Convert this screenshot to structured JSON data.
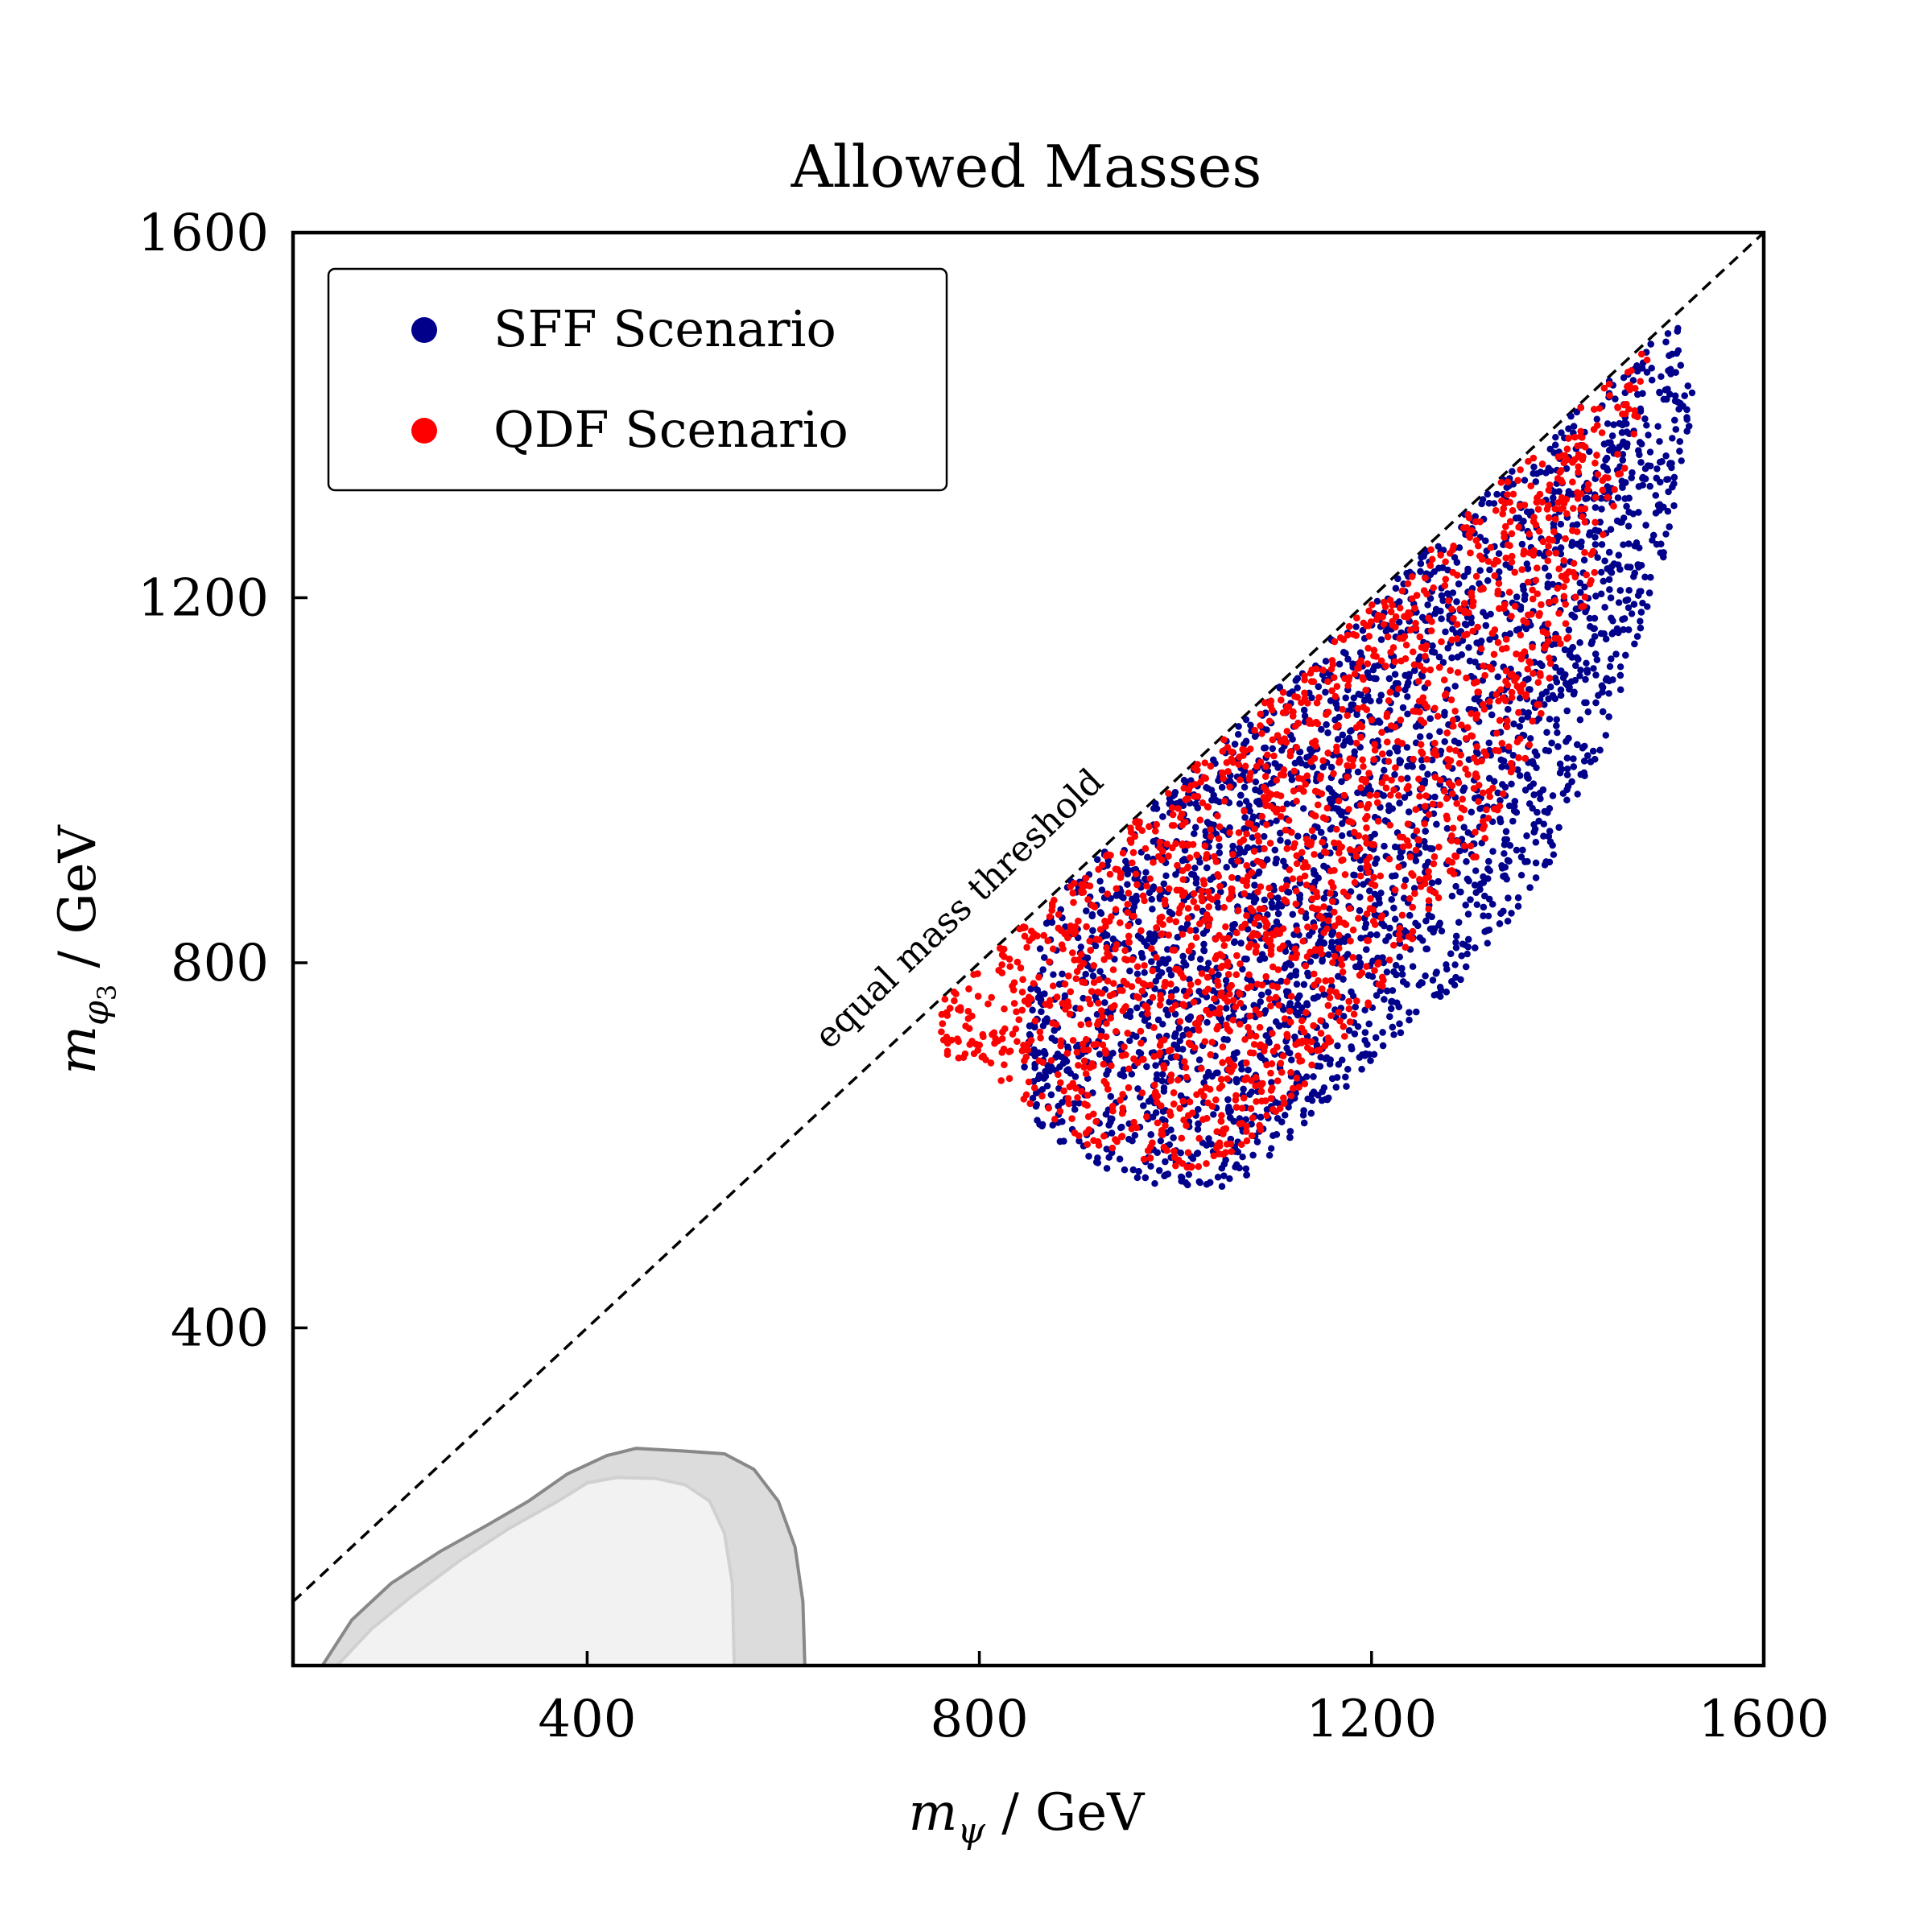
{
  "chart_data": {
    "type": "scatter",
    "title": "Allowed Masses",
    "xlabel": "m_ψ / GeV",
    "ylabel": "m_φ₃ / GeV",
    "xlabel_parts": {
      "symbol": "m",
      "subscript": "ψ",
      "unit": " / GeV"
    },
    "ylabel_parts": {
      "symbol": "m",
      "subscript": "φ",
      "subsubscript": "3",
      "unit": " / GeV"
    },
    "xlim": [
      100,
      1600
    ],
    "ylim": [
      30,
      1600
    ],
    "xticks": [
      400,
      800,
      1200,
      1600
    ],
    "yticks": [
      400,
      800,
      1200,
      1600
    ],
    "xtick_labels": [
      "400",
      "800",
      "1200",
      "1600"
    ],
    "ytick_labels": [
      "400",
      "800",
      "1200",
      "1600"
    ],
    "grid": false,
    "legend_position": "top-left",
    "annotation": {
      "text": "equal mass threshold",
      "along": "diagonal y = x"
    },
    "diagonal": {
      "style": "dashed",
      "from": [
        100,
        100
      ],
      "to": [
        1600,
        1600
      ]
    },
    "series": [
      {
        "name": "SFF Scenario",
        "color": "#00008b",
        "region": {
          "description": "dense cloud below y = x",
          "boundary": [
            [
              870,
              870
            ],
            [
              1510,
              1510
            ],
            [
              1530,
              1420
            ],
            [
              1500,
              1250
            ],
            [
              1440,
              1050
            ],
            [
              1380,
              900
            ],
            [
              1300,
              790
            ],
            [
              1210,
              700
            ],
            [
              1130,
              620
            ],
            [
              1060,
              555
            ],
            [
              980,
              555
            ],
            [
              915,
              580
            ],
            [
              860,
              620
            ],
            [
              845,
              680
            ],
            [
              850,
              760
            ],
            [
              865,
              830
            ]
          ]
        },
        "n_points": 5200
      },
      {
        "name": "QDF Scenario",
        "color": "#ff0000",
        "region": {
          "description": "dense cloud below y = x, slightly inside SFF region",
          "boundary": [
            [
              760,
              760
            ],
            [
              1490,
              1490
            ],
            [
              1470,
              1380
            ],
            [
              1420,
              1200
            ],
            [
              1360,
              1030
            ],
            [
              1300,
              900
            ],
            [
              1230,
              800
            ],
            [
              1160,
              700
            ],
            [
              1100,
              620
            ],
            [
              1040,
              575
            ],
            [
              980,
              575
            ],
            [
              910,
              600
            ],
            [
              860,
              640
            ],
            [
              800,
              680
            ],
            [
              765,
              700
            ],
            [
              755,
              730
            ]
          ]
        },
        "n_points": 4800
      }
    ],
    "excluded_regions": [
      {
        "name": "outer exclusion",
        "fill": "#dcdcdc",
        "edge": "#888888",
        "boundary": [
          [
            130,
            30
          ],
          [
            160,
            80
          ],
          [
            200,
            120
          ],
          [
            250,
            155
          ],
          [
            300,
            185
          ],
          [
            340,
            210
          ],
          [
            380,
            240
          ],
          [
            420,
            260
          ],
          [
            450,
            268
          ],
          [
            500,
            265
          ],
          [
            540,
            262
          ],
          [
            570,
            245
          ],
          [
            595,
            210
          ],
          [
            612,
            160
          ],
          [
            620,
            100
          ],
          [
            622,
            30
          ]
        ]
      },
      {
        "name": "inner exclusion",
        "fill": "#f2f2f2",
        "edge": "#d0d0d0",
        "boundary": [
          [
            145,
            30
          ],
          [
            180,
            70
          ],
          [
            220,
            105
          ],
          [
            270,
            145
          ],
          [
            320,
            180
          ],
          [
            370,
            210
          ],
          [
            400,
            230
          ],
          [
            430,
            236
          ],
          [
            470,
            235
          ],
          [
            500,
            228
          ],
          [
            525,
            210
          ],
          [
            540,
            175
          ],
          [
            548,
            120
          ],
          [
            550,
            30
          ]
        ]
      }
    ]
  }
}
